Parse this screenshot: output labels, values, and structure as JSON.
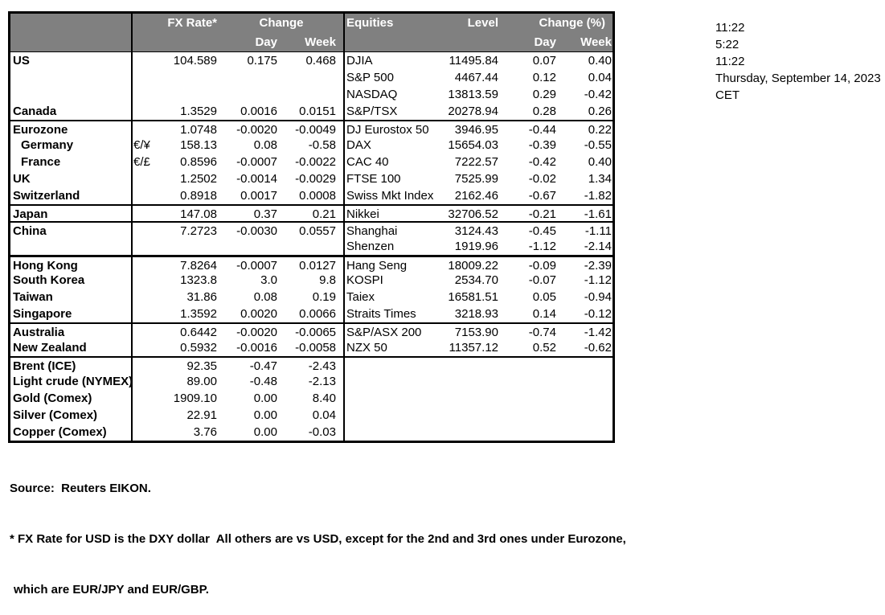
{
  "colors": {
    "header_bg": "#808080",
    "header_text": "#ffffff",
    "border": "#000000"
  },
  "table": {
    "header": {
      "fx_rate": "FX Rate*",
      "change": "Change",
      "day": "Day",
      "week": "Week",
      "equities": "Equities",
      "level": "Level",
      "change_pct": "Change (%)"
    },
    "rows": [
      {
        "name": "US",
        "ind": false,
        "pair": "",
        "fx": "104.589",
        "day": "0.175",
        "week": "0.468",
        "eq": "DJIA",
        "level": "11495.84",
        "eday": "0.07",
        "eweek": "0.40",
        "bt": 0
      },
      {
        "name": "",
        "ind": false,
        "pair": "",
        "fx": "",
        "day": "",
        "week": "",
        "eq": "S&P 500",
        "level": "4467.44",
        "eday": "0.12",
        "eweek": "0.04",
        "bt": 0
      },
      {
        "name": "",
        "ind": false,
        "pair": "",
        "fx": "",
        "day": "",
        "week": "",
        "eq": "NASDAQ",
        "level": "13813.59",
        "eday": "0.29",
        "eweek": "-0.42",
        "bt": 0
      },
      {
        "name": "Canada",
        "ind": false,
        "pair": "",
        "fx": "1.3529",
        "day": "0.0016",
        "week": "0.0151",
        "eq": "S&P/TSX",
        "level": "20278.94",
        "eday": "0.28",
        "eweek": "0.26",
        "bt": 0
      },
      {
        "name": "Eurozone",
        "ind": false,
        "pair": "",
        "fx": "1.0748",
        "day": "-0.0020",
        "week": "-0.0049",
        "eq": "DJ Eurostox 50",
        "level": "3946.95",
        "eday": "-0.44",
        "eweek": "0.22",
        "bt": 1
      },
      {
        "name": "Germany",
        "ind": true,
        "pair": "€/¥",
        "fx": "158.13",
        "day": "0.08",
        "week": "-0.58",
        "eq": "DAX",
        "level": "15654.03",
        "eday": "-0.39",
        "eweek": "-0.55",
        "bt": 0
      },
      {
        "name": "France",
        "ind": true,
        "pair": "€/£",
        "fx": "0.8596",
        "day": "-0.0007",
        "week": "-0.0022",
        "eq": "CAC 40",
        "level": "7222.57",
        "eday": "-0.42",
        "eweek": "0.40",
        "bt": 0
      },
      {
        "name": "UK",
        "ind": false,
        "pair": "",
        "fx": "1.2502",
        "day": "-0.0014",
        "week": "-0.0029",
        "eq": "FTSE 100",
        "level": "7525.99",
        "eday": "-0.02",
        "eweek": "1.34",
        "bt": 0
      },
      {
        "name": "Switzerland",
        "ind": false,
        "pair": "",
        "fx": "0.8918",
        "day": "0.0017",
        "week": "0.0008",
        "eq": "Swiss Mkt Index",
        "level": "2162.46",
        "eday": "-0.67",
        "eweek": "-1.82",
        "bt": 0
      },
      {
        "name": "Japan",
        "ind": false,
        "pair": "",
        "fx": "147.08",
        "day": "0.37",
        "week": "0.21",
        "eq": "Nikkei",
        "level": "32706.52",
        "eday": "-0.21",
        "eweek": "-1.61",
        "bt": 1
      },
      {
        "name": "China",
        "ind": false,
        "pair": "",
        "fx": "7.2723",
        "day": "-0.0030",
        "week": "0.0557",
        "eq": "Shanghai",
        "level": "3124.43",
        "eday": "-0.45",
        "eweek": "-1.11",
        "bt": 1
      },
      {
        "name": "",
        "ind": false,
        "pair": "",
        "fx": "",
        "day": "",
        "week": "",
        "eq": "Shenzen",
        "level": "1919.96",
        "eday": "-1.12",
        "eweek": "-2.14",
        "bt": 0
      },
      {
        "name": "Hong Kong",
        "ind": false,
        "pair": "",
        "fx": "7.8264",
        "day": "-0.0007",
        "week": "0.0127",
        "eq": "Hang Seng",
        "level": "18009.22",
        "eday": "-0.09",
        "eweek": "-2.39",
        "bt": 2
      },
      {
        "name": "South Korea",
        "ind": false,
        "pair": "",
        "fx": "1323.8",
        "day": "3.0",
        "week": "9.8",
        "eq": "KOSPI",
        "level": "2534.70",
        "eday": "-0.07",
        "eweek": "-1.12",
        "bt": 0
      },
      {
        "name": "Taiwan",
        "ind": false,
        "pair": "",
        "fx": "31.86",
        "day": "0.08",
        "week": "0.19",
        "eq": "Taiex",
        "level": "16581.51",
        "eday": "0.05",
        "eweek": "-0.94",
        "bt": 0
      },
      {
        "name": "Singapore",
        "ind": false,
        "pair": "",
        "fx": "1.3592",
        "day": "0.0020",
        "week": "0.0066",
        "eq": "Straits Times",
        "level": "3218.93",
        "eday": "0.14",
        "eweek": "-0.12",
        "bt": 0
      },
      {
        "name": "Australia",
        "ind": false,
        "pair": "",
        "fx": "0.6442",
        "day": "-0.0020",
        "week": "-0.0065",
        "eq": "S&P/ASX 200",
        "level": "7153.90",
        "eday": "-0.74",
        "eweek": "-1.42",
        "bt": 1
      },
      {
        "name": "New Zealand",
        "ind": false,
        "pair": "",
        "fx": "0.5932",
        "day": "-0.0016",
        "week": "-0.0058",
        "eq": "NZX 50",
        "level": "11357.12",
        "eday": "0.52",
        "eweek": "-0.62",
        "bt": 0
      },
      {
        "name": "Brent (ICE)",
        "ind": false,
        "pair": "",
        "fx": "92.35",
        "day": "-0.47",
        "week": "-2.43",
        "eq": "",
        "level": "",
        "eday": "",
        "eweek": "",
        "bt": 1
      },
      {
        "name": "Light crude (NYMEX)",
        "ind": false,
        "pair": "",
        "fx": "89.00",
        "day": "-0.48",
        "week": "-2.13",
        "eq": "",
        "level": "",
        "eday": "",
        "eweek": "",
        "bt": 0
      },
      {
        "name": "Gold (Comex)",
        "ind": false,
        "pair": "",
        "fx": "1909.10",
        "day": "0.00",
        "week": "8.40",
        "eq": "",
        "level": "",
        "eday": "",
        "eweek": "",
        "bt": 0
      },
      {
        "name": "Silver (Comex)",
        "ind": false,
        "pair": "",
        "fx": "22.91",
        "day": "0.00",
        "week": "0.04",
        "eq": "",
        "level": "",
        "eday": "",
        "eweek": "",
        "bt": 0
      },
      {
        "name": "Copper (Comex)",
        "ind": false,
        "pair": "",
        "fx": "3.76",
        "day": "0.00",
        "week": "-0.03",
        "eq": "",
        "level": "",
        "eday": "",
        "eweek": "",
        "bt": 0
      }
    ]
  },
  "stamp": {
    "lines": [
      "11:22",
      "5:22",
      "11:22",
      "Thursday, September 14, 2023",
      "CET"
    ]
  },
  "footer": {
    "source": "Source:  Reuters EIKON.",
    "note1": "* FX Rate for USD is the DXY dollar  All others are vs USD, except for the 2nd and 3rd ones under Eurozone,",
    "note2": "which are EUR/JPY and EUR/GBP."
  }
}
